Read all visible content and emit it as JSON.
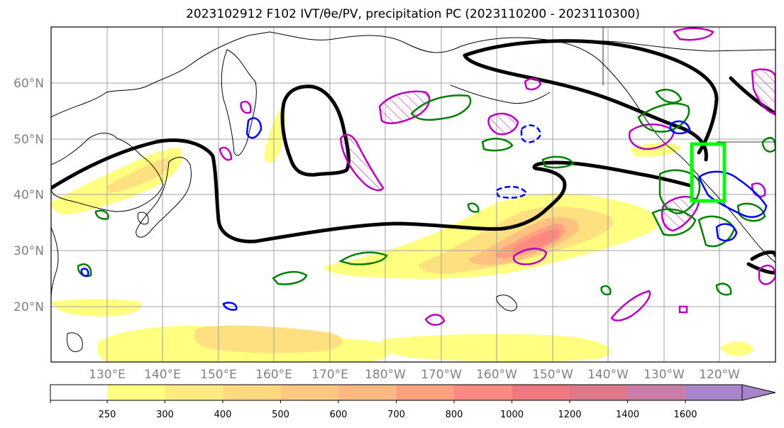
{
  "title": "2023102912 F102 IVT/θe/PV, precipitation PC (2023110200 - 2023110300)",
  "latitude_labels": [
    "60°N",
    "50°N",
    "40°N",
    "30°N",
    "20°N"
  ],
  "longitude_labels": [
    "130°E",
    "140°E",
    "150°E",
    "160°E",
    "170°E",
    "180°W",
    "170°W",
    "160°W",
    "150°W",
    "140°W",
    "130°W",
    "120°W"
  ],
  "colorbar": {
    "ticks": [
      "250",
      "300",
      "400",
      "500",
      "600",
      "700",
      "800",
      "1000",
      "1200",
      "1400",
      "1600"
    ],
    "colors": [
      "#ffff80",
      "#ffeb80",
      "#ffd880",
      "#ffc880",
      "#ffb880",
      "#ffa080",
      "#ff8880",
      "#f07880",
      "#dc7888",
      "#c87ca8",
      "#a884c8"
    ]
  },
  "colors": {
    "ivt_contour": "#000000",
    "theta_e_positive": "#008000",
    "theta_e_negative": "#0000ff",
    "pv": "#bb00bb",
    "highlight_box": "#00ff00",
    "coastline": "#000000",
    "grid": "#a0a0a0"
  }
}
